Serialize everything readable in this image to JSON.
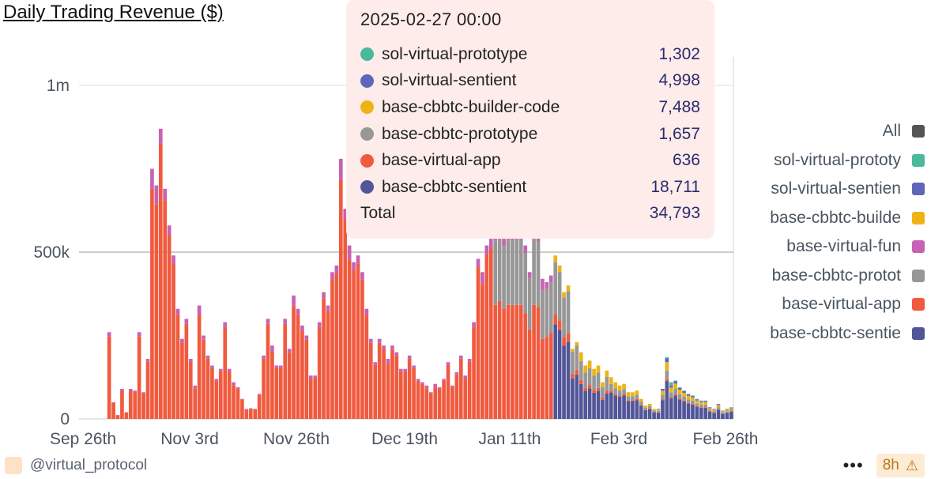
{
  "title": "Daily Trading Revenue ($)",
  "chart_data": {
    "type": "bar",
    "stacked": true,
    "x_tick_labels": [
      "Sep 26th",
      "Nov 3rd",
      "Nov 26th",
      "Dec 19th",
      "Jan 11th",
      "Feb 3rd",
      "Feb 26th"
    ],
    "y_tick_labels": [
      "0",
      "500k",
      "1m"
    ],
    "ylim": [
      0,
      1000000
    ],
    "y_ticks": [
      0,
      500000,
      1000000
    ],
    "grid": true,
    "legend_position": "right",
    "series": [
      {
        "name": "base-cbbtc-sentient",
        "color": "#525597"
      },
      {
        "name": "base-virtual-app",
        "color": "#f05a3e"
      },
      {
        "name": "base-cbbtc-prototype",
        "color": "#979797"
      },
      {
        "name": "base-virtual-fun",
        "color": "#c762b5"
      },
      {
        "name": "base-cbbtc-builder-code",
        "color": "#eeb314"
      },
      {
        "name": "sol-virtual-sentient",
        "color": "#5d66b9"
      },
      {
        "name": "sol-virtual-prototype",
        "color": "#4ab89a"
      }
    ],
    "totals": [
      0,
      260000,
      50000,
      12000,
      90000,
      20000,
      90000,
      85000,
      260000,
      80000,
      180000,
      750000,
      700000,
      870000,
      690000,
      580000,
      490000,
      330000,
      240000,
      300000,
      180000,
      100000,
      340000,
      250000,
      190000,
      160000,
      120000,
      150000,
      290000,
      150000,
      110000,
      95000,
      60000,
      30000,
      32000,
      30000,
      75000,
      190000,
      300000,
      220000,
      160000,
      160000,
      300000,
      210000,
      370000,
      330000,
      280000,
      250000,
      130000,
      130000,
      290000,
      380000,
      340000,
      440000,
      460000,
      780000,
      630000,
      520000,
      470000,
      490000,
      440000,
      330000,
      240000,
      170000,
      240000,
      220000,
      180000,
      220000,
      200000,
      150000,
      150000,
      190000,
      160000,
      120000,
      110000,
      100000,
      80000,
      105000,
      95000,
      120000,
      170000,
      100000,
      140000,
      190000,
      130000,
      180000,
      290000,
      480000,
      440000,
      520000,
      540000,
      560000,
      580000,
      540000,
      560000,
      560000,
      560000,
      560000,
      520000,
      440000,
      570000,
      560000,
      420000,
      410000,
      430000,
      490000,
      460000,
      380000,
      400000,
      210000,
      230000,
      200000,
      160000,
      175000,
      150000,
      160000,
      110000,
      145000,
      125000,
      110000,
      100000,
      105000,
      80000,
      80000,
      85000,
      60000,
      40000,
      45000,
      30000,
      30000,
      90000,
      185000,
      110000,
      115000,
      95000,
      85000,
      75000,
      70000,
      60000,
      55000,
      55000,
      35000,
      30000,
      45000,
      25000,
      30000,
      34793
    ]
  },
  "legend": {
    "items": [
      {
        "label": "All",
        "color": "#555555"
      },
      {
        "label": "sol-virtual-prototy",
        "color": "#4ab89a"
      },
      {
        "label": "sol-virtual-sentien",
        "color": "#5d66b9"
      },
      {
        "label": "base-cbbtc-builde",
        "color": "#eeb314"
      },
      {
        "label": "base-virtual-fun",
        "color": "#c762b5"
      },
      {
        "label": "base-cbbtc-protot",
        "color": "#979797"
      },
      {
        "label": "base-virtual-app",
        "color": "#f05a3e"
      },
      {
        "label": "base-cbbtc-sentie",
        "color": "#525597"
      }
    ]
  },
  "tooltip": {
    "date": "2025-02-27 00:00",
    "rows": [
      {
        "name": "sol-virtual-prototype",
        "value": "1,302",
        "color": "#4ab89a"
      },
      {
        "name": "sol-virtual-sentient",
        "value": "4,998",
        "color": "#5d66b9"
      },
      {
        "name": "base-cbbtc-builder-code",
        "value": "7,488",
        "color": "#eeb314"
      },
      {
        "name": "base-cbbtc-prototype",
        "value": "1,657",
        "color": "#979797"
      },
      {
        "name": "base-virtual-app",
        "value": "636",
        "color": "#f05a3e"
      },
      {
        "name": "base-cbbtc-sentient",
        "value": "18,711",
        "color": "#525597"
      }
    ],
    "total_label": "Total",
    "total_value": "34,793"
  },
  "footer": {
    "handle": "@virtual_protocol",
    "more": "•••",
    "age": "8h",
    "warning_icon": "warning-icon"
  }
}
